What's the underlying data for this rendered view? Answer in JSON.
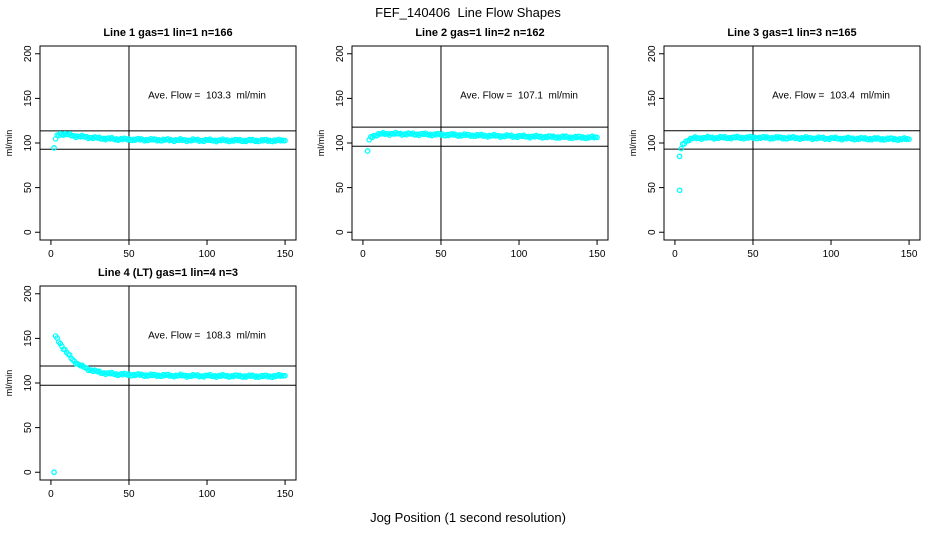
{
  "chart_data": {
    "type": "scatter",
    "title": "FEF_140406  Line Flow Shapes",
    "xlabel": "Jog Position (1 second resolution)",
    "ylabel": "ml/min",
    "xlim": [
      0,
      150
    ],
    "ylim": [
      0,
      200
    ],
    "x_ticks": [
      0,
      50,
      100,
      150
    ],
    "y_ticks": [
      0,
      50,
      100,
      150,
      200
    ],
    "grid": false,
    "point_color": "#00FFFF",
    "line_color": "#000000",
    "background_color": "#FFFFFF",
    "vline_x": 50,
    "annotation_position": {
      "x": 100,
      "y": 150
    },
    "panels": [
      {
        "title": "Line 1 gas=1 lin=1 n=166",
        "n": 166,
        "ave_flow": 103.3,
        "ave_flow_label": "Ave. Flow =  103.3  ml/min",
        "hlines": [
          113.6,
          93.0
        ],
        "outliers": [
          [
            2,
            94.5
          ]
        ],
        "band": [
          [
            3,
            104
          ],
          [
            4,
            108
          ],
          [
            6,
            110.5
          ],
          [
            10,
            109.5
          ],
          [
            15,
            108
          ],
          [
            20,
            107
          ],
          [
            30,
            105.5
          ],
          [
            40,
            104.5
          ],
          [
            50,
            104
          ],
          [
            60,
            103.7
          ],
          [
            75,
            103.3
          ],
          [
            100,
            103
          ],
          [
            125,
            102.8
          ],
          [
            150,
            102.7
          ]
        ]
      },
      {
        "title": "Line 2 gas=1 lin=2 n=162",
        "n": 162,
        "ave_flow": 107.1,
        "ave_flow_label": "Ave. Flow =  107.1  ml/min",
        "hlines": [
          117.8,
          96.4
        ],
        "outliers": [
          [
            3,
            91
          ]
        ],
        "band": [
          [
            4,
            103
          ],
          [
            5,
            106
          ],
          [
            7,
            108.5
          ],
          [
            10,
            109.8
          ],
          [
            15,
            110.4
          ],
          [
            25,
            110.2
          ],
          [
            40,
            109.7
          ],
          [
            60,
            109
          ],
          [
            80,
            108.2
          ],
          [
            100,
            107.5
          ],
          [
            120,
            106.8
          ],
          [
            135,
            106.4
          ],
          [
            150,
            106.2
          ]
        ]
      },
      {
        "title": "Line 3 gas=1 lin=3 n=165",
        "n": 165,
        "ave_flow": 103.4,
        "ave_flow_label": "Ave. Flow =  103.4  ml/min",
        "hlines": [
          113.7,
          93.1
        ],
        "outliers": [
          [
            3,
            85
          ],
          [
            3,
            47
          ]
        ],
        "band": [
          [
            4,
            93
          ],
          [
            5,
            98
          ],
          [
            7,
            102
          ],
          [
            9,
            104
          ],
          [
            12,
            105.3
          ],
          [
            18,
            105.8
          ],
          [
            30,
            106
          ],
          [
            50,
            106
          ],
          [
            75,
            105.7
          ],
          [
            100,
            105.2
          ],
          [
            125,
            104.7
          ],
          [
            150,
            104.2
          ]
        ]
      },
      {
        "title": "Line 4 (LT) gas=1 lin=4 n=3",
        "n": 3,
        "ave_flow": 108.3,
        "ave_flow_label": "Ave. Flow =  108.3  ml/min",
        "hlines": [
          119.1,
          97.5
        ],
        "outliers": [
          [
            2,
            0
          ]
        ],
        "band": [
          [
            3,
            152
          ],
          [
            5,
            147
          ],
          [
            8,
            139
          ],
          [
            11,
            132
          ],
          [
            14,
            126
          ],
          [
            17,
            121.5
          ],
          [
            20,
            118.5
          ],
          [
            24,
            115.5
          ],
          [
            28,
            113.3
          ],
          [
            32,
            111.8
          ],
          [
            36,
            110.8
          ],
          [
            40,
            110.2
          ],
          [
            45,
            109.7
          ],
          [
            50,
            109.3
          ],
          [
            60,
            108.8
          ],
          [
            70,
            108.5
          ],
          [
            85,
            108.2
          ],
          [
            100,
            108
          ],
          [
            115,
            107.9
          ],
          [
            130,
            107.6
          ],
          [
            140,
            107.5
          ],
          [
            150,
            108.2
          ]
        ]
      }
    ]
  }
}
